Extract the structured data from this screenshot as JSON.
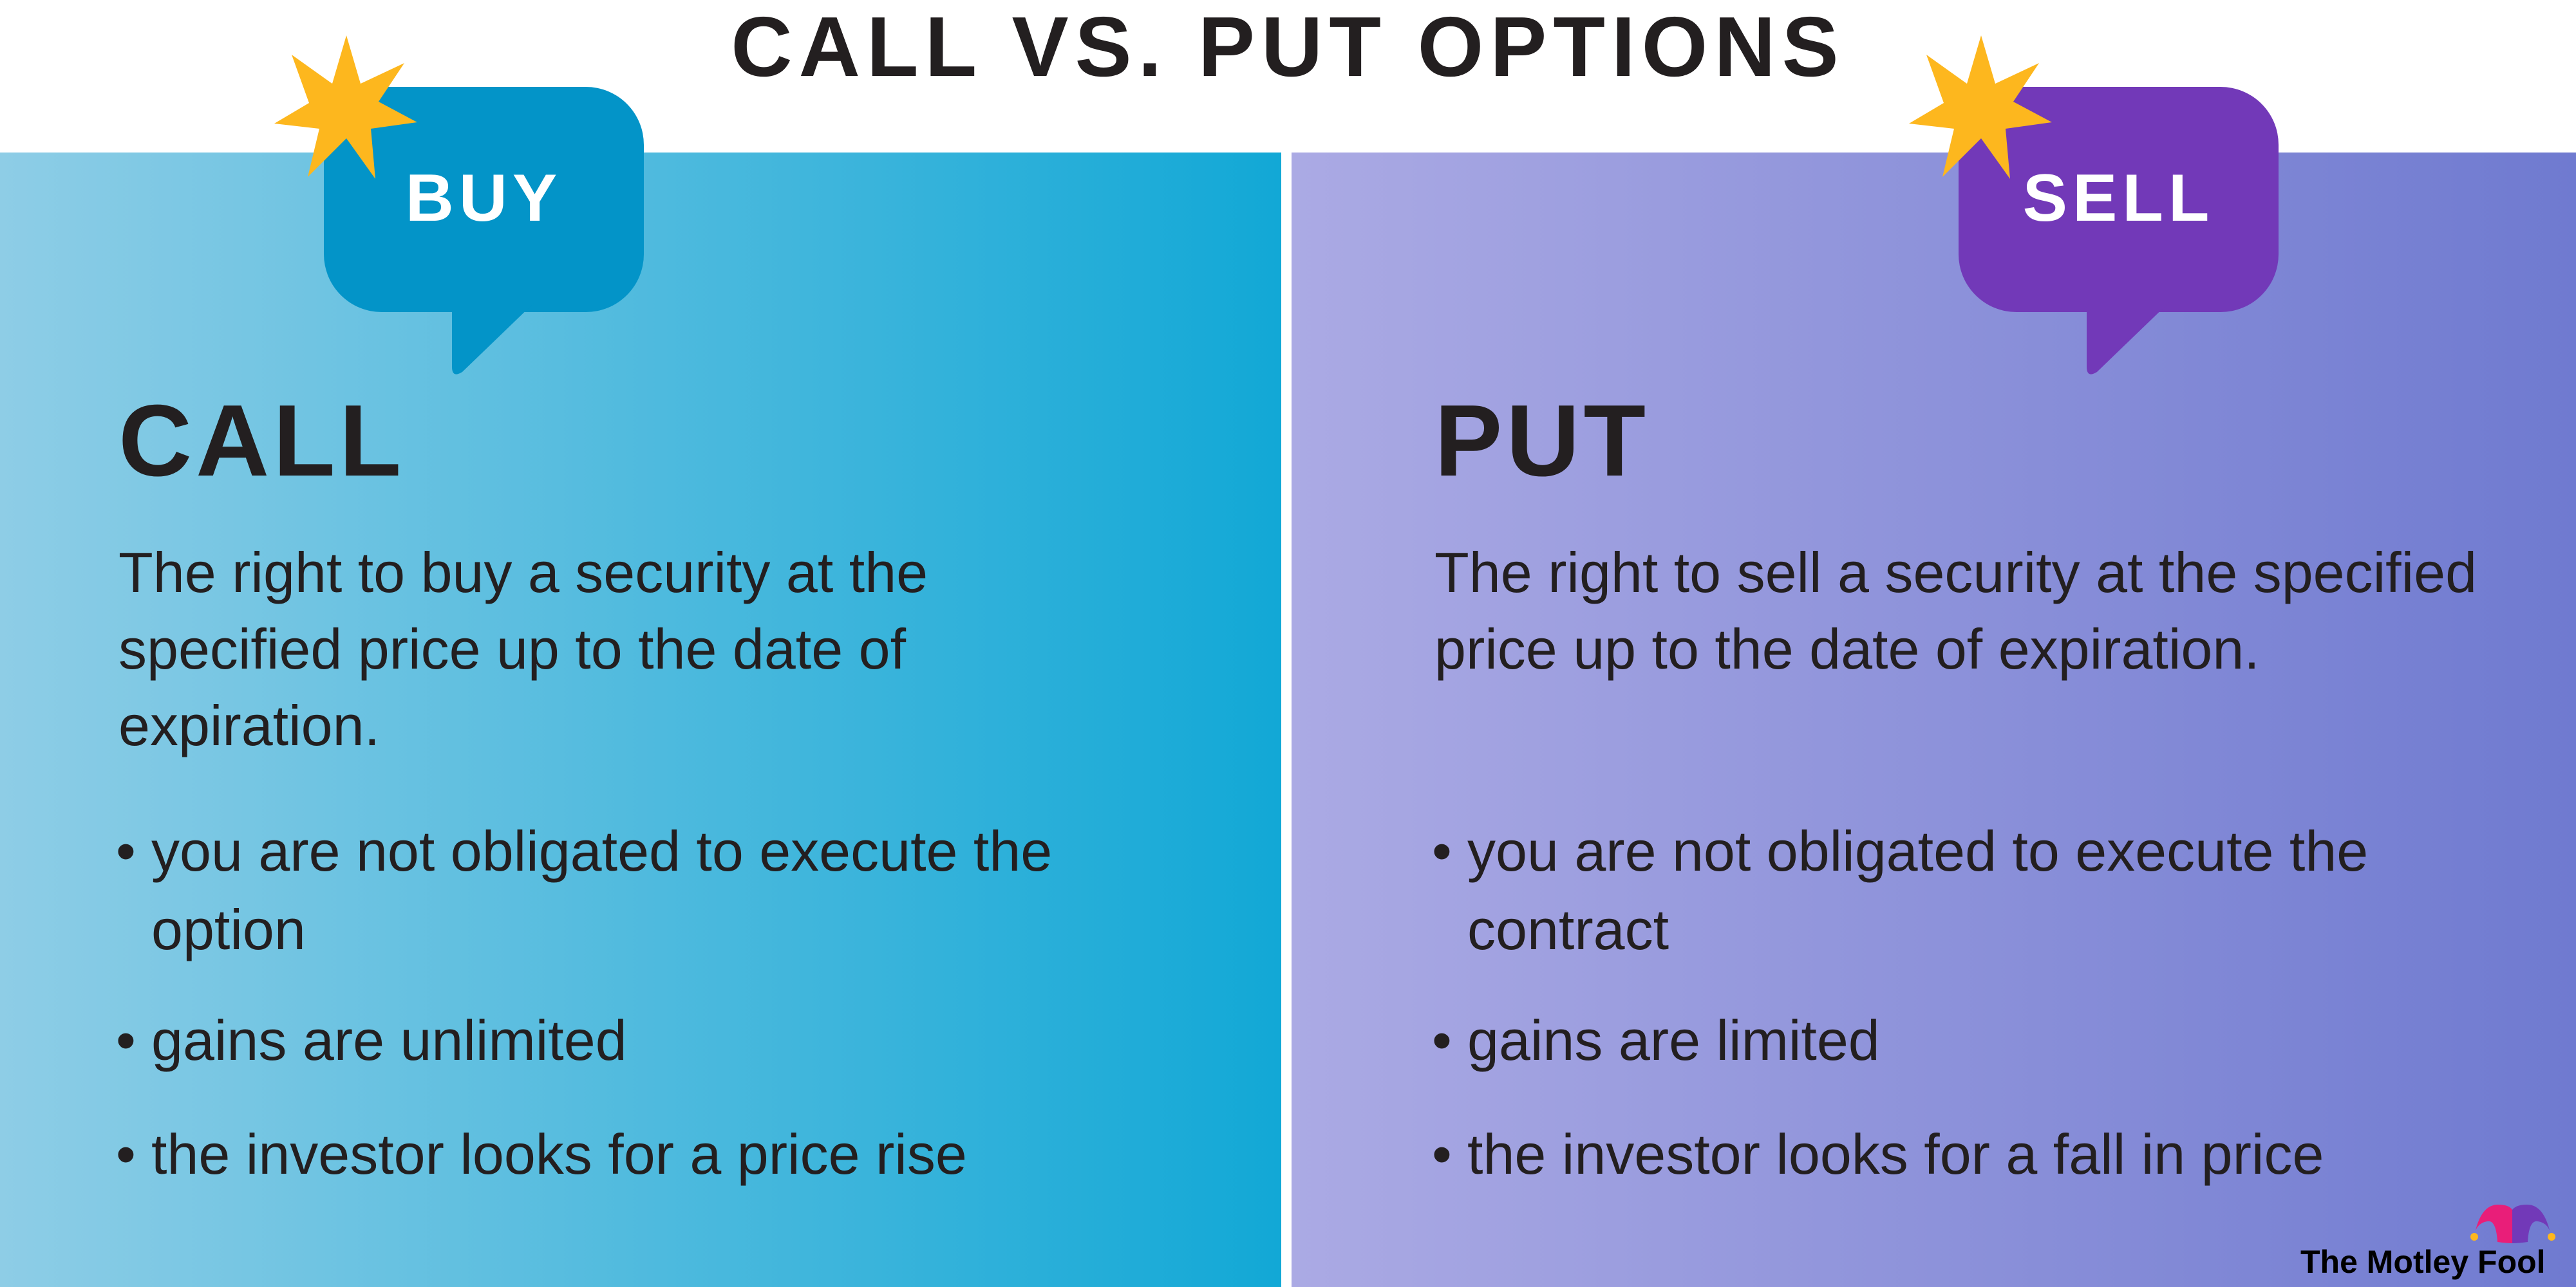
{
  "title": "CALL VS. PUT OPTIONS",
  "colors": {
    "call_bubble": "#0394c8",
    "put_bubble": "#7239b8",
    "star": "#fdb71e",
    "call_gradient": [
      "#8ecde6",
      "#12a8d6"
    ],
    "put_gradient": [
      "#abaae4",
      "#6f7ad0"
    ]
  },
  "call": {
    "bubble_label": "BUY",
    "heading": "CALL",
    "description": "The right to buy a security at the specified price up to the date of expiration.",
    "bullets": [
      "you are not obligated to execute the option",
      "gains are unlimited",
      "the investor looks for a price rise"
    ]
  },
  "put": {
    "bubble_label": "SELL",
    "heading": "PUT",
    "description": "The right to sell a security at the specified price up to the date of expiration.",
    "bullets": [
      "you are not obligated to execute the contract",
      "gains are limited",
      "the investor looks for a fall in price"
    ]
  },
  "bullet_char": "•",
  "logo": {
    "text": "The Motley Fool",
    "icon": "jester-hat-icon"
  }
}
